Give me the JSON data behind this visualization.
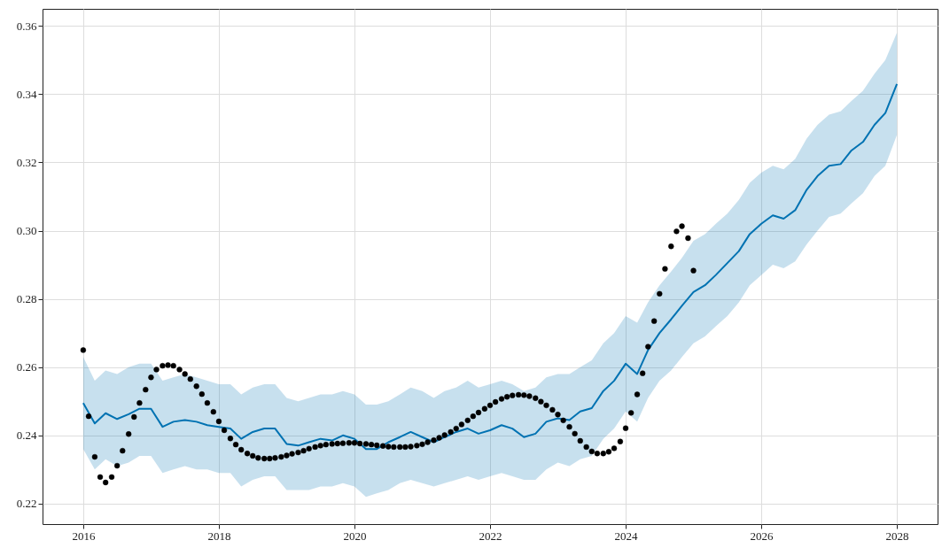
{
  "chart_data": {
    "type": "line",
    "xlim": [
      2015.4,
      2028.6
    ],
    "ylim": [
      0.214,
      0.365
    ],
    "xticks": [
      2016,
      2018,
      2020,
      2022,
      2024,
      2026,
      2028
    ],
    "yticks": [
      0.22,
      0.24,
      0.26,
      0.28,
      {
        "value": 0.3,
        "label": "0.30"
      },
      0.32,
      0.34,
      0.36
    ],
    "grid": true,
    "series": [
      {
        "type": "line",
        "color": "#0072b2",
        "marker": "none",
        "x": [
          2016.0,
          2016.17,
          2016.33,
          2016.5,
          2016.67,
          2016.83,
          2017.0,
          2017.17,
          2017.33,
          2017.5,
          2017.67,
          2017.83,
          2018.0,
          2018.17,
          2018.33,
          2018.5,
          2018.67,
          2018.83,
          2019.0,
          2019.17,
          2019.33,
          2019.5,
          2019.67,
          2019.83,
          2020.0,
          2020.17,
          2020.33,
          2020.5,
          2020.67,
          2020.83,
          2021.0,
          2021.17,
          2021.33,
          2021.5,
          2021.67,
          2021.83,
          2022.0,
          2022.17,
          2022.33,
          2022.5,
          2022.67,
          2022.83,
          2023.0,
          2023.17,
          2023.33,
          2023.5,
          2023.67,
          2023.83,
          2024.0,
          2024.17,
          2024.33,
          2024.5,
          2024.67,
          2024.83,
          2025.0,
          2025.17,
          2025.33,
          2025.5,
          2025.67,
          2025.83,
          2026.0,
          2026.17,
          2026.33,
          2026.5,
          2026.67,
          2026.83,
          2027.0,
          2027.17,
          2027.33,
          2027.5,
          2027.67,
          2027.83,
          2028.0
        ],
        "values": [
          0.2495,
          0.2435,
          0.2465,
          0.2448,
          0.2462,
          0.2478,
          0.2478,
          0.2425,
          0.244,
          0.2445,
          0.244,
          0.243,
          0.2425,
          0.242,
          0.239,
          0.241,
          0.242,
          0.242,
          0.2375,
          0.237,
          0.238,
          0.239,
          0.2385,
          0.24,
          0.239,
          0.236,
          0.236,
          0.238,
          0.2395,
          0.241,
          0.2395,
          0.238,
          0.2395,
          0.241,
          0.242,
          0.2405,
          0.2415,
          0.243,
          0.242,
          0.2395,
          0.2405,
          0.244,
          0.245,
          0.2445,
          0.247,
          0.248,
          0.253,
          0.256,
          0.261,
          0.258,
          0.265,
          0.27,
          0.274,
          0.278,
          0.282,
          0.284,
          0.287,
          0.2905,
          0.294,
          0.299,
          0.302,
          0.3045,
          0.3035,
          0.306,
          0.312,
          0.316,
          0.319,
          0.3195,
          0.3235,
          0.326,
          0.331,
          0.3345,
          0.343
        ],
        "lower": [
          0.236,
          0.23,
          0.233,
          0.231,
          0.232,
          0.234,
          0.234,
          0.229,
          0.23,
          0.231,
          0.23,
          0.23,
          0.229,
          0.229,
          0.225,
          0.227,
          0.228,
          0.228,
          0.224,
          0.224,
          0.224,
          0.225,
          0.225,
          0.226,
          0.225,
          0.222,
          0.223,
          0.224,
          0.226,
          0.227,
          0.226,
          0.225,
          0.226,
          0.227,
          0.228,
          0.227,
          0.228,
          0.229,
          0.228,
          0.227,
          0.227,
          0.23,
          0.232,
          0.231,
          0.233,
          0.234,
          0.239,
          0.242,
          0.247,
          0.244,
          0.251,
          0.256,
          0.259,
          0.263,
          0.267,
          0.269,
          0.272,
          0.275,
          0.279,
          0.284,
          0.287,
          0.29,
          0.289,
          0.291,
          0.296,
          0.3,
          0.304,
          0.305,
          0.308,
          0.311,
          0.316,
          0.319,
          0.328
        ],
        "upper": [
          0.263,
          0.256,
          0.259,
          0.258,
          0.26,
          0.261,
          0.261,
          0.256,
          0.257,
          0.258,
          0.257,
          0.256,
          0.255,
          0.255,
          0.252,
          0.254,
          0.255,
          0.255,
          0.251,
          0.25,
          0.251,
          0.252,
          0.252,
          0.253,
          0.252,
          0.249,
          0.249,
          0.25,
          0.252,
          0.254,
          0.253,
          0.251,
          0.253,
          0.254,
          0.256,
          0.254,
          0.255,
          0.256,
          0.255,
          0.253,
          0.254,
          0.257,
          0.258,
          0.258,
          0.26,
          0.262,
          0.267,
          0.27,
          0.275,
          0.273,
          0.279,
          0.284,
          0.288,
          0.292,
          0.297,
          0.299,
          0.302,
          0.305,
          0.309,
          0.314,
          0.317,
          0.319,
          0.318,
          0.321,
          0.327,
          0.331,
          0.334,
          0.335,
          0.338,
          0.341,
          0.346,
          0.35,
          0.358
        ]
      },
      {
        "type": "scatter",
        "color": "#000000",
        "marker": "circle",
        "x": [
          2016.0,
          2016.08,
          2016.17,
          2016.25,
          2016.33,
          2016.42,
          2016.5,
          2016.58,
          2016.67,
          2016.75,
          2016.83,
          2016.92,
          2017.0,
          2017.08,
          2017.17,
          2017.25,
          2017.33,
          2017.42,
          2017.5,
          2017.58,
          2017.67,
          2017.75,
          2017.83,
          2017.92,
          2018.0,
          2018.08,
          2018.17,
          2018.25,
          2018.33,
          2018.42,
          2018.5,
          2018.58,
          2018.67,
          2018.75,
          2018.83,
          2018.92,
          2019.0,
          2019.08,
          2019.17,
          2019.25,
          2019.33,
          2019.42,
          2019.5,
          2019.58,
          2019.67,
          2019.75,
          2019.83,
          2019.92,
          2020.0,
          2020.08,
          2020.17,
          2020.25,
          2020.33,
          2020.42,
          2020.5,
          2020.58,
          2020.67,
          2020.75,
          2020.83,
          2020.92,
          2021.0,
          2021.08,
          2021.17,
          2021.25,
          2021.33,
          2021.42,
          2021.5,
          2021.58,
          2021.67,
          2021.75,
          2021.83,
          2021.92,
          2022.0,
          2022.08,
          2022.17,
          2022.25,
          2022.33,
          2022.42,
          2022.5,
          2022.58,
          2022.67,
          2022.75,
          2022.83,
          2022.92,
          2023.0,
          2023.08,
          2023.17,
          2023.25,
          2023.33,
          2023.42,
          2023.5,
          2023.58,
          2023.67,
          2023.75,
          2023.83,
          2023.92,
          2024.0,
          2024.08,
          2024.17,
          2024.25,
          2024.33,
          2024.42,
          2024.5,
          2024.58,
          2024.67,
          2024.75,
          2024.83,
          2024.92,
          2025.0
        ],
        "values": [
          0.265,
          0.2456,
          0.2337,
          0.2278,
          0.2262,
          0.2278,
          0.2311,
          0.2355,
          0.2404,
          0.2454,
          0.2495,
          0.2534,
          0.257,
          0.2593,
          0.2604,
          0.2606,
          0.2604,
          0.2593,
          0.258,
          0.2565,
          0.2544,
          0.2521,
          0.2495,
          0.2469,
          0.2441,
          0.2415,
          0.2391,
          0.2373,
          0.2358,
          0.2347,
          0.234,
          0.2334,
          0.2332,
          0.2332,
          0.2334,
          0.2337,
          0.2341,
          0.2346,
          0.235,
          0.2355,
          0.2361,
          0.2366,
          0.237,
          0.2373,
          0.2375,
          0.2376,
          0.2377,
          0.2378,
          0.2378,
          0.2376,
          0.2375,
          0.2373,
          0.2371,
          0.2369,
          0.2367,
          0.2366,
          0.2366,
          0.2366,
          0.2367,
          0.237,
          0.2374,
          0.238,
          0.2386,
          0.2393,
          0.2401,
          0.241,
          0.242,
          0.2432,
          0.2444,
          0.2456,
          0.2467,
          0.2478,
          0.2488,
          0.2498,
          0.2507,
          0.2513,
          0.2517,
          0.2519,
          0.2518,
          0.2515,
          0.2509,
          0.2499,
          0.2488,
          0.2475,
          0.2461,
          0.2444,
          0.2425,
          0.2405,
          0.2384,
          0.2366,
          0.2353,
          0.2347,
          0.2347,
          0.2352,
          0.2362,
          0.2382,
          0.2421,
          0.2466,
          0.252,
          0.2582,
          0.266,
          0.2735,
          0.2815,
          0.2888,
          0.2954,
          0.2998,
          0.3013,
          0.2978,
          0.2883
        ]
      }
    ]
  }
}
